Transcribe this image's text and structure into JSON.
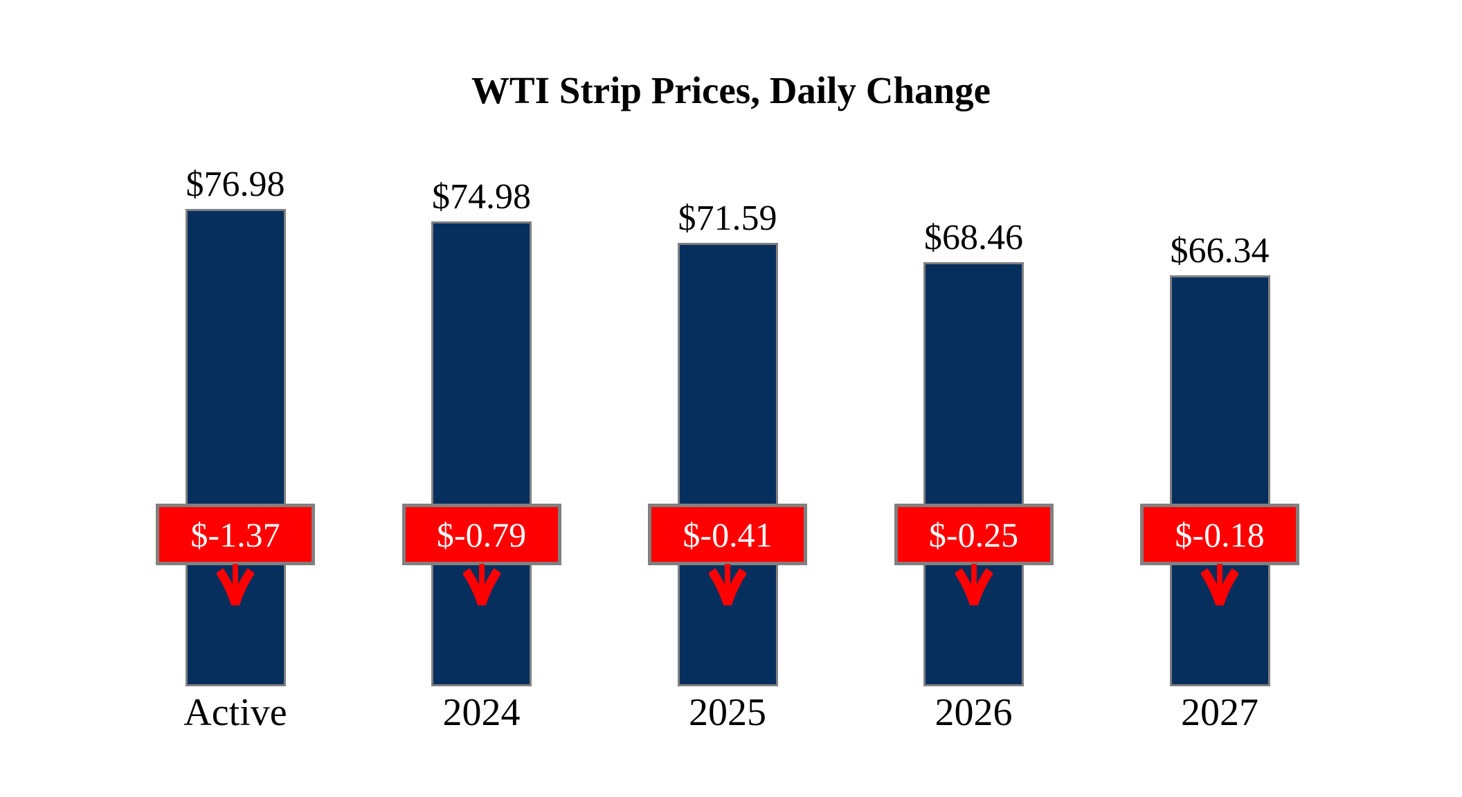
{
  "title": "WTI Strip Prices, Daily Change",
  "chart_data": {
    "type": "bar",
    "title": "WTI Strip Prices, Daily Change",
    "categories": [
      "Active",
      "2024",
      "2025",
      "2026",
      "2027"
    ],
    "series": [
      {
        "name": "strip_price",
        "values": [
          76.98,
          74.98,
          71.59,
          68.46,
          66.34
        ]
      },
      {
        "name": "daily_change",
        "values": [
          -1.37,
          -0.79,
          -0.41,
          -0.25,
          -0.18
        ]
      }
    ],
    "value_labels": [
      "$76.98",
      "$74.98",
      "$71.59",
      "$68.46",
      "$66.34"
    ],
    "change_labels": [
      "$-1.37",
      "$-0.79",
      "$-0.41",
      "$-0.25",
      "$-0.18"
    ],
    "ylim": [
      0,
      80
    ],
    "grid": false,
    "legend": "none",
    "direction_indicator": "down-arrow",
    "colors": {
      "bar_fill": "#072F5E",
      "bar_border": "#808080",
      "change_fill": "#FF0000",
      "change_border": "#808080",
      "change_text": "#FFFFFF",
      "arrow": "#FF0000",
      "label_text": "#000000",
      "background": "#FFFFFF"
    }
  }
}
